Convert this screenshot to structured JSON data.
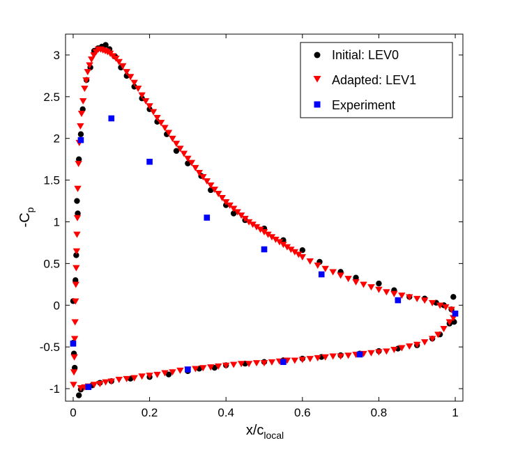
{
  "chart_data": {
    "type": "scatter",
    "title": "",
    "xlabel": "x/c",
    "xlabel_subscript": "local",
    "ylabel": "-C",
    "ylabel_subscript": "p",
    "xlim": [
      -0.02,
      1.02
    ],
    "ylim": [
      -1.15,
      3.25
    ],
    "x_ticks": [
      0,
      0.2,
      0.4,
      0.6,
      0.8,
      1
    ],
    "x_tick_labels": [
      "0",
      "0.2",
      "0.4",
      "0.6",
      "0.8",
      "1"
    ],
    "y_ticks": [
      -1,
      -0.5,
      0,
      0.5,
      1,
      1.5,
      2,
      2.5,
      3
    ],
    "y_tick_labels": [
      "-1",
      "-0.5",
      "0",
      "0.5",
      "1",
      "1.5",
      "2",
      "2.5",
      "3"
    ],
    "grid": false,
    "legend_position": "top-right",
    "colors": {
      "initial": "#000000",
      "adapted": "#ff0000",
      "experiment": "#0000ff"
    },
    "series": [
      {
        "name": "Initial: LEV0",
        "marker": "circle",
        "color": "#000000",
        "points": [
          [
            0.0,
            0.05
          ],
          [
            0.0,
            -0.45
          ],
          [
            0.002,
            -0.58
          ],
          [
            0.004,
            -0.75
          ],
          [
            0.006,
            0.3
          ],
          [
            0.008,
            0.6
          ],
          [
            0.01,
            1.25
          ],
          [
            0.012,
            1.1
          ],
          [
            0.015,
            1.75
          ],
          [
            0.02,
            2.05
          ],
          [
            0.025,
            2.35
          ],
          [
            0.035,
            2.7
          ],
          [
            0.045,
            2.85
          ],
          [
            0.055,
            3.05
          ],
          [
            0.065,
            3.08
          ],
          [
            0.075,
            3.1
          ],
          [
            0.085,
            3.12
          ],
          [
            0.095,
            3.07
          ],
          [
            0.11,
            2.98
          ],
          [
            0.125,
            2.85
          ],
          [
            0.14,
            2.75
          ],
          [
            0.16,
            2.62
          ],
          [
            0.18,
            2.48
          ],
          [
            0.2,
            2.35
          ],
          [
            0.22,
            2.2
          ],
          [
            0.245,
            2.05
          ],
          [
            0.27,
            1.85
          ],
          [
            0.3,
            1.7
          ],
          [
            0.335,
            1.55
          ],
          [
            0.36,
            1.38
          ],
          [
            0.4,
            1.2
          ],
          [
            0.42,
            1.1
          ],
          [
            0.45,
            1.02
          ],
          [
            0.5,
            0.92
          ],
          [
            0.55,
            0.78
          ],
          [
            0.6,
            0.66
          ],
          [
            0.645,
            0.52
          ],
          [
            0.7,
            0.4
          ],
          [
            0.74,
            0.33
          ],
          [
            0.8,
            0.26
          ],
          [
            0.84,
            0.18
          ],
          [
            0.88,
            0.1
          ],
          [
            0.92,
            0.08
          ],
          [
            0.95,
            0.03
          ],
          [
            0.97,
            0.0
          ],
          [
            0.99,
            -0.05
          ],
          [
            0.995,
            0.1
          ],
          [
            0.997,
            -0.2
          ],
          [
            0.985,
            -0.22
          ],
          [
            0.96,
            -0.35
          ],
          [
            0.94,
            -0.4
          ],
          [
            0.9,
            -0.48
          ],
          [
            0.85,
            -0.52
          ],
          [
            0.8,
            -0.55
          ],
          [
            0.75,
            -0.58
          ],
          [
            0.7,
            -0.6
          ],
          [
            0.65,
            -0.62
          ],
          [
            0.6,
            -0.64
          ],
          [
            0.55,
            -0.66
          ],
          [
            0.5,
            -0.68
          ],
          [
            0.45,
            -0.7
          ],
          [
            0.4,
            -0.72
          ],
          [
            0.37,
            -0.75
          ],
          [
            0.33,
            -0.76
          ],
          [
            0.3,
            -0.79
          ],
          [
            0.25,
            -0.83
          ],
          [
            0.2,
            -0.86
          ],
          [
            0.15,
            -0.88
          ],
          [
            0.1,
            -0.91
          ],
          [
            0.07,
            -0.93
          ],
          [
            0.05,
            -0.96
          ],
          [
            0.035,
            -0.98
          ],
          [
            0.02,
            -1.01
          ],
          [
            0.015,
            -1.08
          ]
        ]
      },
      {
        "name": "Adapted: LEV1",
        "marker": "triangle-down",
        "color": "#ff0000",
        "points": [
          [
            0.001,
            -0.95
          ],
          [
            0.002,
            -0.8
          ],
          [
            0.003,
            -0.62
          ],
          [
            0.004,
            -0.4
          ],
          [
            0.005,
            -0.2
          ],
          [
            0.006,
            0.05
          ],
          [
            0.007,
            0.25
          ],
          [
            0.008,
            0.45
          ],
          [
            0.009,
            0.65
          ],
          [
            0.01,
            0.85
          ],
          [
            0.011,
            1.05
          ],
          [
            0.012,
            1.4
          ],
          [
            0.014,
            1.7
          ],
          [
            0.016,
            1.95
          ],
          [
            0.019,
            2.15
          ],
          [
            0.022,
            2.3
          ],
          [
            0.026,
            2.45
          ],
          [
            0.03,
            2.6
          ],
          [
            0.034,
            2.7
          ],
          [
            0.038,
            2.8
          ],
          [
            0.043,
            2.88
          ],
          [
            0.048,
            2.95
          ],
          [
            0.054,
            3.0
          ],
          [
            0.06,
            3.04
          ],
          [
            0.066,
            3.07
          ],
          [
            0.072,
            3.07
          ],
          [
            0.078,
            3.06
          ],
          [
            0.084,
            3.05
          ],
          [
            0.09,
            3.04
          ],
          [
            0.097,
            3.02
          ],
          [
            0.104,
            2.99
          ],
          [
            0.112,
            2.96
          ],
          [
            0.12,
            2.92
          ],
          [
            0.13,
            2.87
          ],
          [
            0.14,
            2.8
          ],
          [
            0.15,
            2.74
          ],
          [
            0.16,
            2.67
          ],
          [
            0.17,
            2.6
          ],
          [
            0.18,
            2.52
          ],
          [
            0.19,
            2.45
          ],
          [
            0.2,
            2.39
          ],
          [
            0.21,
            2.32
          ],
          [
            0.22,
            2.25
          ],
          [
            0.23,
            2.19
          ],
          [
            0.24,
            2.13
          ],
          [
            0.25,
            2.07
          ],
          [
            0.26,
            2.0
          ],
          [
            0.27,
            1.94
          ],
          [
            0.28,
            1.88
          ],
          [
            0.29,
            1.82
          ],
          [
            0.3,
            1.76
          ],
          [
            0.31,
            1.71
          ],
          [
            0.32,
            1.65
          ],
          [
            0.33,
            1.59
          ],
          [
            0.34,
            1.54
          ],
          [
            0.35,
            1.49
          ],
          [
            0.36,
            1.44
          ],
          [
            0.37,
            1.39
          ],
          [
            0.38,
            1.34
          ],
          [
            0.39,
            1.29
          ],
          [
            0.4,
            1.24
          ],
          [
            0.41,
            1.2
          ],
          [
            0.42,
            1.16
          ],
          [
            0.43,
            1.12
          ],
          [
            0.44,
            1.08
          ],
          [
            0.45,
            1.04
          ],
          [
            0.46,
            1.0
          ],
          [
            0.47,
            0.97
          ],
          [
            0.48,
            0.94
          ],
          [
            0.49,
            0.91
          ],
          [
            0.5,
            0.88
          ],
          [
            0.51,
            0.85
          ],
          [
            0.52,
            0.82
          ],
          [
            0.53,
            0.79
          ],
          [
            0.54,
            0.76
          ],
          [
            0.55,
            0.73
          ],
          [
            0.56,
            0.7
          ],
          [
            0.57,
            0.67
          ],
          [
            0.58,
            0.64
          ],
          [
            0.59,
            0.61
          ],
          [
            0.6,
            0.58
          ],
          [
            0.62,
            0.53
          ],
          [
            0.64,
            0.48
          ],
          [
            0.66,
            0.44
          ],
          [
            0.68,
            0.4
          ],
          [
            0.7,
            0.36
          ],
          [
            0.72,
            0.32
          ],
          [
            0.74,
            0.28
          ],
          [
            0.76,
            0.25
          ],
          [
            0.78,
            0.22
          ],
          [
            0.8,
            0.19
          ],
          [
            0.82,
            0.16
          ],
          [
            0.84,
            0.14
          ],
          [
            0.86,
            0.12
          ],
          [
            0.88,
            0.1
          ],
          [
            0.9,
            0.08
          ],
          [
            0.92,
            0.06
          ],
          [
            0.94,
            0.03
          ],
          [
            0.96,
            0.0
          ],
          [
            0.975,
            -0.02
          ],
          [
            0.99,
            -0.05
          ],
          [
            0.998,
            -0.1
          ],
          [
            0.995,
            -0.15
          ],
          [
            0.985,
            -0.2
          ],
          [
            0.97,
            -0.28
          ],
          [
            0.955,
            -0.35
          ],
          [
            0.94,
            -0.4
          ],
          [
            0.92,
            -0.44
          ],
          [
            0.9,
            -0.47
          ],
          [
            0.88,
            -0.49
          ],
          [
            0.86,
            -0.51
          ],
          [
            0.84,
            -0.53
          ],
          [
            0.82,
            -0.55
          ],
          [
            0.8,
            -0.56
          ],
          [
            0.78,
            -0.57
          ],
          [
            0.76,
            -0.58
          ],
          [
            0.74,
            -0.59
          ],
          [
            0.72,
            -0.6
          ],
          [
            0.7,
            -0.61
          ],
          [
            0.68,
            -0.61
          ],
          [
            0.66,
            -0.62
          ],
          [
            0.64,
            -0.63
          ],
          [
            0.62,
            -0.64
          ],
          [
            0.6,
            -0.65
          ],
          [
            0.58,
            -0.66
          ],
          [
            0.56,
            -0.66
          ],
          [
            0.54,
            -0.67
          ],
          [
            0.52,
            -0.68
          ],
          [
            0.5,
            -0.69
          ],
          [
            0.48,
            -0.69
          ],
          [
            0.46,
            -0.7
          ],
          [
            0.44,
            -0.7
          ],
          [
            0.42,
            -0.71
          ],
          [
            0.4,
            -0.72
          ],
          [
            0.38,
            -0.73
          ],
          [
            0.36,
            -0.74
          ],
          [
            0.34,
            -0.75
          ],
          [
            0.32,
            -0.76
          ],
          [
            0.3,
            -0.77
          ],
          [
            0.28,
            -0.78
          ],
          [
            0.26,
            -0.8
          ],
          [
            0.24,
            -0.81
          ],
          [
            0.22,
            -0.83
          ],
          [
            0.2,
            -0.84
          ],
          [
            0.18,
            -0.85
          ],
          [
            0.16,
            -0.87
          ],
          [
            0.14,
            -0.88
          ],
          [
            0.12,
            -0.89
          ],
          [
            0.1,
            -0.91
          ],
          [
            0.085,
            -0.92
          ],
          [
            0.07,
            -0.94
          ],
          [
            0.055,
            -0.95
          ],
          [
            0.04,
            -0.97
          ],
          [
            0.03,
            -0.98
          ],
          [
            0.02,
            -0.99
          ]
        ]
      },
      {
        "name": "Experiment",
        "marker": "square",
        "color": "#0000ff",
        "points": [
          [
            0.0,
            -0.46
          ],
          [
            0.02,
            1.98
          ],
          [
            0.1,
            2.24
          ],
          [
            0.2,
            1.72
          ],
          [
            0.35,
            1.05
          ],
          [
            0.5,
            0.67
          ],
          [
            0.65,
            0.37
          ],
          [
            0.85,
            0.06
          ],
          [
            1.0,
            -0.1
          ],
          [
            0.75,
            -0.59
          ],
          [
            0.55,
            -0.68
          ],
          [
            0.3,
            -0.77
          ],
          [
            0.04,
            -0.98
          ]
        ]
      }
    ]
  }
}
